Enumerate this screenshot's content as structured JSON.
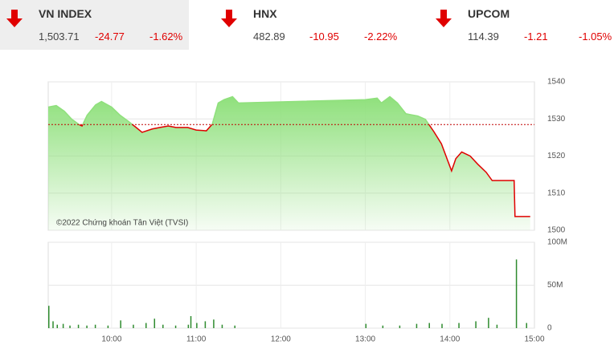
{
  "indices": [
    {
      "name": "VN INDEX",
      "value": "1,503.71",
      "change": "-24.77",
      "percent": "-1.62%"
    },
    {
      "name": "HNX",
      "value": "482.89",
      "change": "-10.95",
      "percent": "-2.22%"
    },
    {
      "name": "UPCOM",
      "value": "114.39",
      "change": "-1.21",
      "percent": "-1.05%"
    }
  ],
  "chart_data": [
    {
      "type": "line",
      "watermark": "©2022 Chứng khoán Tân Việt (TVSI)",
      "x": [
        9.25,
        9.345,
        9.44,
        9.53,
        9.62,
        9.65,
        9.71,
        9.81,
        9.88,
        10.0,
        10.1,
        10.19,
        10.29,
        10.36,
        10.48,
        10.57,
        10.67,
        10.76,
        10.9,
        11.0,
        11.12,
        11.19,
        11.26,
        11.33,
        11.43,
        11.5,
        13.0,
        13.14,
        13.19,
        13.29,
        13.38,
        13.48,
        13.62,
        13.71,
        13.81,
        13.9,
        14.02,
        14.07,
        14.14,
        14.24,
        14.33,
        14.43,
        14.5,
        14.76,
        14.77,
        14.95
      ],
      "values": [
        1533.2,
        1533.6,
        1532.1,
        1529.9,
        1528.4,
        1528.1,
        1531,
        1533.8,
        1534.7,
        1533.2,
        1531,
        1529.5,
        1527.7,
        1526.4,
        1527.3,
        1527.7,
        1528.1,
        1527.7,
        1527.7,
        1527,
        1526.8,
        1528.6,
        1534.3,
        1535.2,
        1536,
        1534.3,
        1535.2,
        1535.6,
        1534.3,
        1536,
        1534.3,
        1531.4,
        1530.8,
        1529.9,
        1526.6,
        1523.3,
        1516,
        1519.3,
        1521.1,
        1520,
        1517.8,
        1515.6,
        1513.4,
        1513.4,
        1503.71,
        1503.71
      ],
      "reference": 1528.48,
      "color_above": "#8fe07c",
      "color_below": "#e00000",
      "xlim": [
        9.25,
        15
      ],
      "ylim": [
        1500,
        1540
      ],
      "yticks": [
        1500,
        1510,
        1520,
        1530,
        1540
      ],
      "grid": true
    },
    {
      "type": "bar",
      "x": [
        9.25,
        9.3,
        9.35,
        9.42,
        9.5,
        9.6,
        9.7,
        9.8,
        9.95,
        10.1,
        10.25,
        10.4,
        10.5,
        10.6,
        10.75,
        10.9,
        10.93,
        11.0,
        11.1,
        11.2,
        11.3,
        11.45,
        13.0,
        13.2,
        13.4,
        13.6,
        13.75,
        13.9,
        14.1,
        14.3,
        14.45,
        14.55,
        14.78,
        14.9
      ],
      "values": [
        26000000,
        8000000,
        4000000,
        5000000,
        3000000,
        4000000,
        3000000,
        4000000,
        3000000,
        9000000,
        4000000,
        6000000,
        11000000,
        4000000,
        3000000,
        4000000,
        14000000,
        6000000,
        8000000,
        10000000,
        4000000,
        3000000,
        5000000,
        3000000,
        3000000,
        5000000,
        6000000,
        5000000,
        6000000,
        8000000,
        12000000,
        4000000,
        80000000,
        6000000
      ],
      "color": "#2e8b2e",
      "xlim": [
        9.25,
        15
      ],
      "ylim": [
        0,
        100000000
      ],
      "yticks": [
        0,
        {
          "value": 50000000,
          "label": "50M"
        },
        {
          "value": 100000000,
          "label": "100M"
        }
      ],
      "xticks": [
        {
          "value": 10,
          "label": "10:00"
        },
        {
          "value": 11,
          "label": "11:00"
        },
        {
          "value": 12,
          "label": "12:00"
        },
        {
          "value": 13,
          "label": "13:00"
        },
        {
          "value": 14,
          "label": "14:00"
        },
        {
          "value": 15,
          "label": "15:00"
        }
      ],
      "grid": true
    }
  ]
}
